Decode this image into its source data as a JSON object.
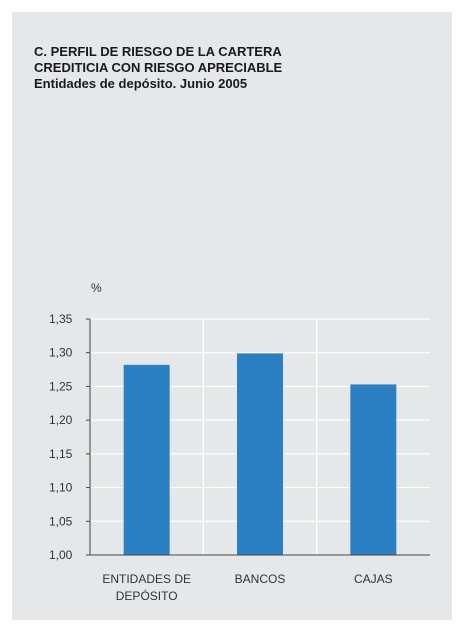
{
  "chart_data": {
    "type": "bar",
    "title_lines": [
      "C.  PERFIL DE RIESGO DE LA CARTERA",
      "CREDITICIA CON RIESGO APRECIABLE"
    ],
    "subtitle": "Entidades de depósito. Junio 2005",
    "ylabel": "%",
    "categories": [
      [
        "ENTIDADES DE",
        "DEPÓSITO"
      ],
      [
        "BANCOS"
      ],
      [
        "CAJAS"
      ]
    ],
    "values": [
      1.282,
      1.299,
      1.253
    ],
    "ylim": [
      1.0,
      1.35
    ],
    "yticks": [
      "1,00",
      "1,05",
      "1,10",
      "1,15",
      "1,20",
      "1,25",
      "1,30",
      "1,35"
    ],
    "grid": true,
    "bar_color": "#2b80c3"
  }
}
